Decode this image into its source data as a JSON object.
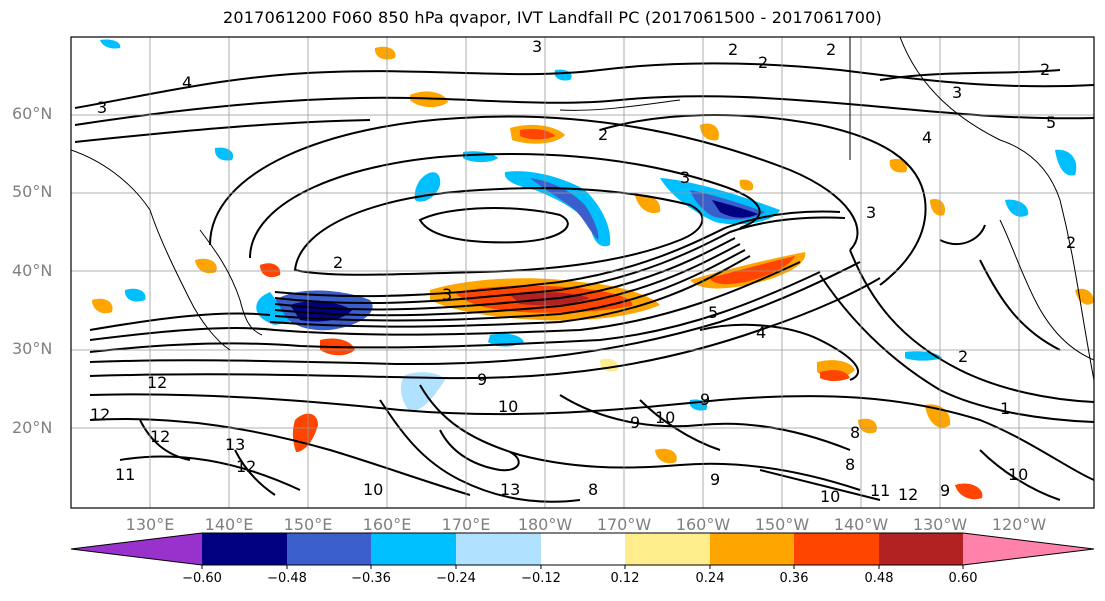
{
  "title": "2017061200 F060 850 hPa qvapor, IVT Landfall PC (2017061500 - 2017061700)",
  "map": {
    "lat_labels": [
      "60°N",
      "50°N",
      "40°N",
      "30°N",
      "20°N"
    ],
    "lon_labels": [
      "130°E",
      "140°E",
      "150°E",
      "160°E",
      "170°E",
      "180°W",
      "170°W",
      "160°W",
      "150°W",
      "140°W",
      "130°W",
      "120°W"
    ],
    "contour_labels": [
      "3",
      "2",
      "2",
      "2",
      "3",
      "3",
      "3",
      "4",
      "5",
      "3",
      "2",
      "2",
      "2",
      "2",
      "3",
      "4",
      "4",
      "5",
      "2",
      "1",
      "12",
      "12",
      "13",
      "12",
      "10",
      "10",
      "9",
      "9",
      "10",
      "8",
      "8",
      "10",
      "11",
      "12",
      "13",
      "9",
      "8",
      "11",
      "9",
      "12",
      "10",
      "9"
    ]
  },
  "colorbar": {
    "colors": [
      "#9932cc",
      "#000080",
      "#3a5fcd",
      "#00bfff",
      "#b0e2ff",
      "#ffffff",
      "#ffec8b",
      "#ffa500",
      "#ff4500",
      "#b22222",
      "#ff82ab"
    ],
    "ticks": [
      "−0.60",
      "−0.48",
      "−0.36",
      "−0.24",
      "−0.12",
      "0.12",
      "0.24",
      "0.36",
      "0.48",
      "0.60"
    ]
  }
}
